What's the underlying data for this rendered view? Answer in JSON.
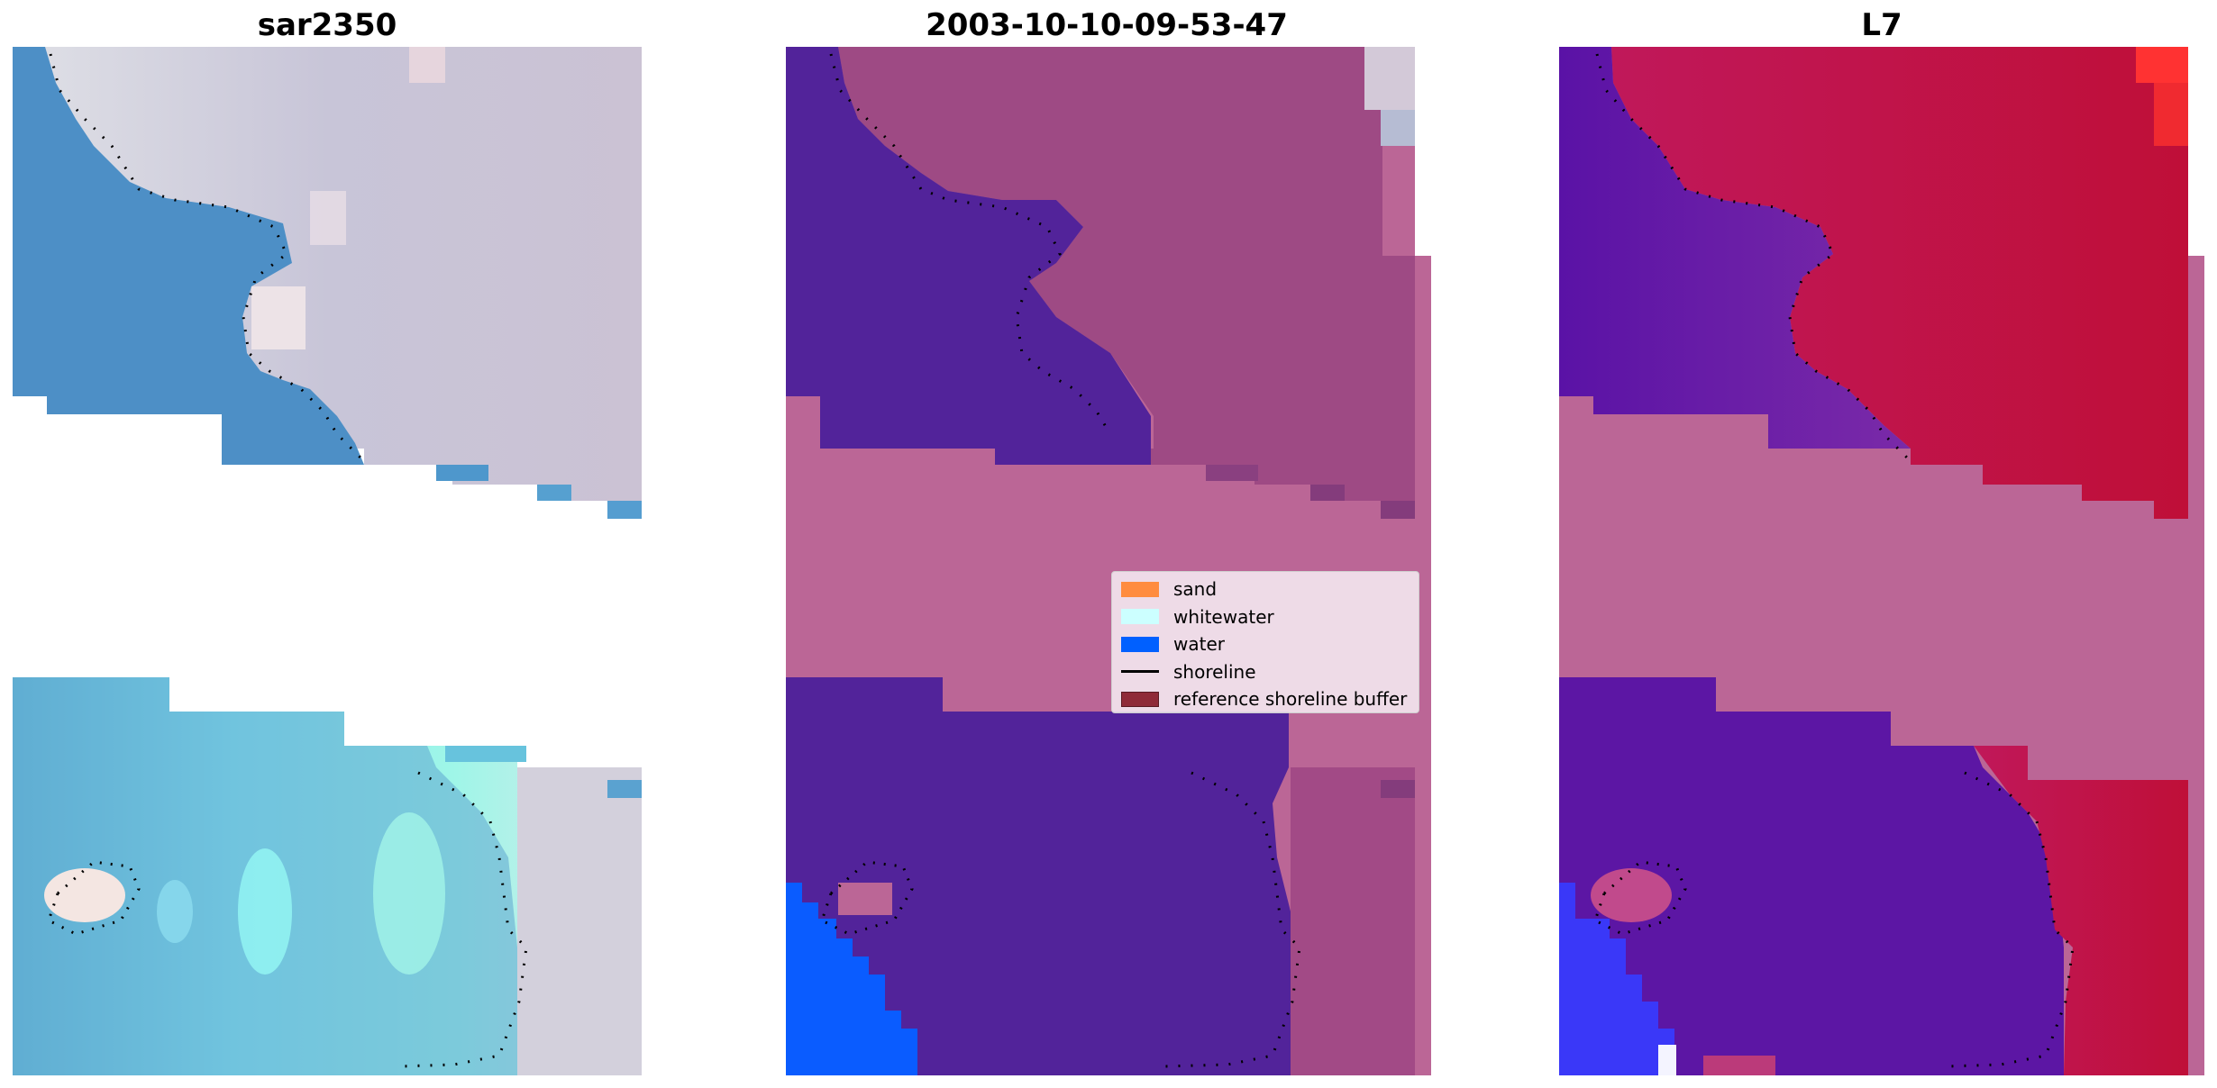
{
  "panels": [
    {
      "title": "sar2350"
    },
    {
      "title": "2003-10-10-09-53-47"
    },
    {
      "title": "L7"
    }
  ],
  "legend": {
    "items": [
      {
        "label": "sand",
        "type": "patch",
        "color": "#ff8c3f"
      },
      {
        "label": "whitewater",
        "type": "patch",
        "color": "#ccffff"
      },
      {
        "label": "water",
        "type": "patch",
        "color": "#0060ff"
      },
      {
        "label": "shoreline",
        "type": "line",
        "color": "#000000"
      },
      {
        "label": "reference shoreline buffer",
        "type": "patch",
        "color": "#8f2a38"
      }
    ]
  },
  "colors": {
    "rgb_water": "#4a8fc4",
    "rgb_land": "#c9c4d6",
    "rgb_whitewater": "#9ff0ec",
    "classified_water": "#52239a",
    "classified_buffer": "#bb6696",
    "classified_land": "#9f4a82",
    "classified_sea": "#0a5cff",
    "index_land": "#bb1640",
    "index_water": "#5c1aa0",
    "index_high": "#ff3030",
    "buffer_overlay": "#bb6696"
  }
}
